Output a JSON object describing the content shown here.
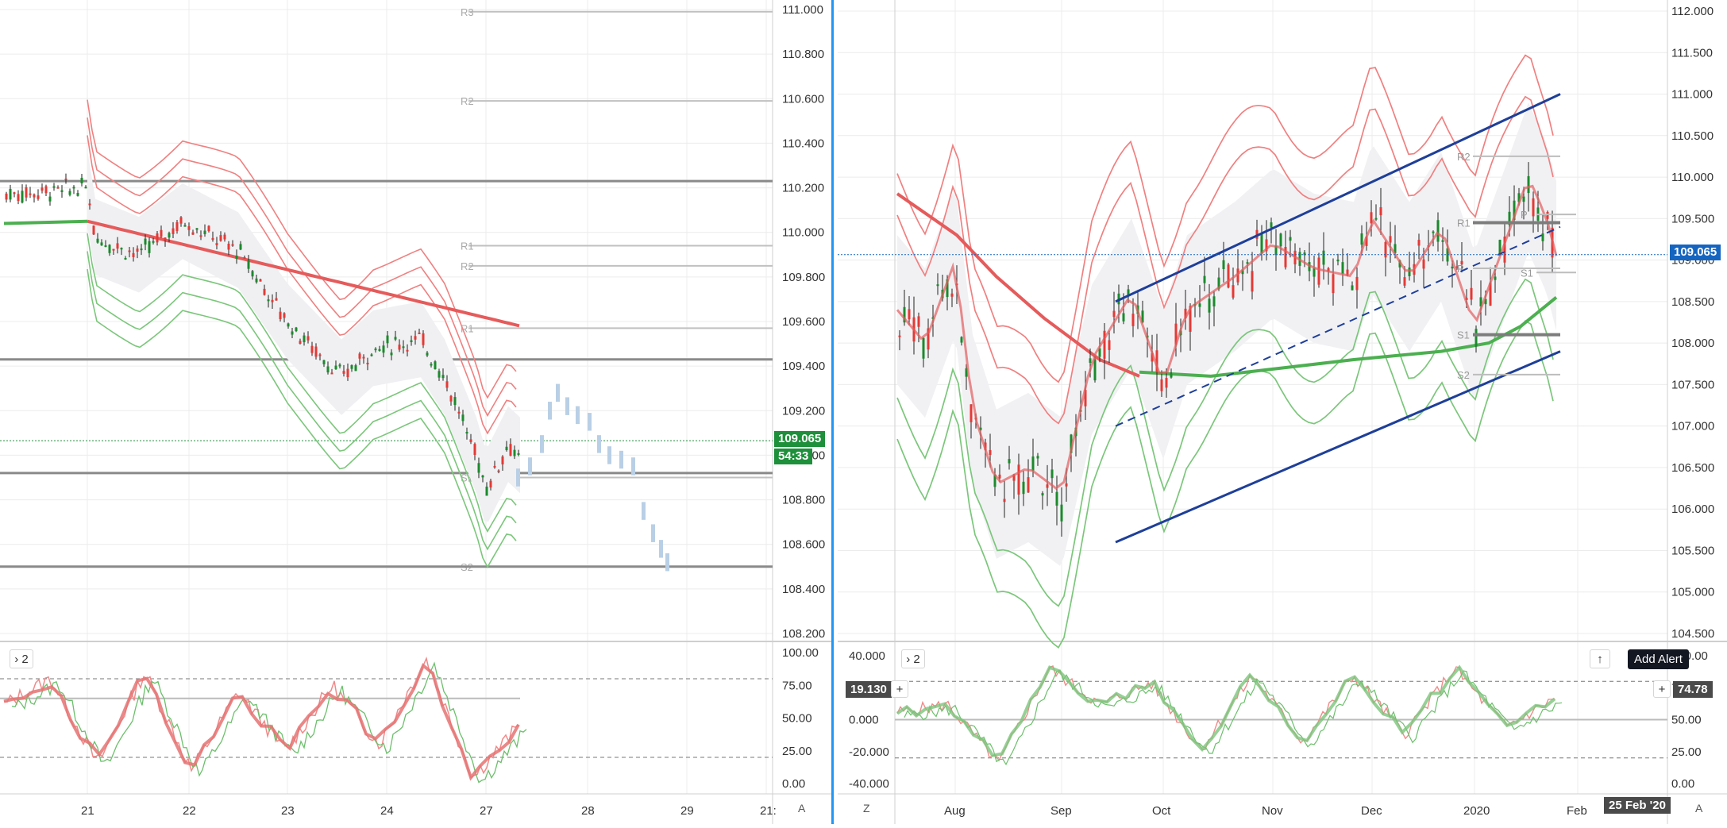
{
  "left": {
    "price_axis": [
      "111.000",
      "110.800",
      "110.600",
      "110.400",
      "110.200",
      "110.000",
      "109.800",
      "109.600",
      "109.400",
      "109.200",
      "109.000",
      "108.800",
      "108.600",
      "108.400",
      "108.200"
    ],
    "time_axis": [
      "21",
      "22",
      "23",
      "24",
      "27",
      "28",
      "29",
      "21:"
    ],
    "pivot_labels": [
      "R3",
      "R2",
      "R1",
      "R2",
      "R1",
      "S1",
      "S2"
    ],
    "last_price": "109.065",
    "countdown": "54:33",
    "indicator_toggle": "2",
    "osc_axis": [
      "100.00",
      "75.00",
      "50.00",
      "25.00",
      "0.00"
    ],
    "corner_label": "A"
  },
  "right": {
    "price_axis": [
      "112.000",
      "111.500",
      "111.000",
      "110.500",
      "110.000",
      "109.500",
      "109.000",
      "108.500",
      "108.000",
      "107.500",
      "107.000",
      "106.500",
      "106.000",
      "105.500",
      "105.000",
      "104.500"
    ],
    "time_axis": [
      "Aug",
      "Sep",
      "Oct",
      "Nov",
      "Dec",
      "2020",
      "Feb"
    ],
    "pivot_labels": [
      "R2",
      "R1",
      "P",
      "S1",
      "S2",
      "P",
      "S1"
    ],
    "last_price": "109.065",
    "indicator_toggle": "2",
    "osc_left_axis": [
      "40.000",
      "20.000",
      "0.000",
      "-20.000",
      "-40.000"
    ],
    "osc_right_axis": [
      "100.00",
      "75.00",
      "50.00",
      "25.00",
      "0.00"
    ],
    "osc_left_value": "19.130",
    "osc_right_value": "74.78",
    "add_alert": "Add Alert",
    "date_tag": "25 Feb '20",
    "corner_left": "Z",
    "corner_right": "A"
  },
  "colors": {
    "accent": "#2196f3",
    "bear": "#e53935",
    "bull": "#1b8a2c",
    "channel": "#1e3f99",
    "price_tag": "#1e8f3a"
  },
  "chart_data": [
    {
      "type": "line",
      "title": "",
      "x": [
        "21",
        "22",
        "23",
        "24",
        "27",
        "28",
        "29"
      ],
      "ylim": [
        108.2,
        111.0
      ],
      "grid": true,
      "series": [
        {
          "values": [
            110.17,
            110.05,
            109.9,
            109.3,
            108.95,
            null,
            null
          ]
        },
        {
          "values": [
            null,
            null,
            null,
            null,
            108.95,
            109.25,
            108.55
          ]
        }
      ],
      "horizontal_levels": [
        110.23,
        109.43,
        108.92,
        108.5
      ],
      "last": 109.065
    },
    {
      "type": "line",
      "title": "",
      "x": [
        "Aug",
        "Sep",
        "Oct",
        "Nov",
        "Dec",
        "2020",
        "Feb"
      ],
      "ylim": [
        104.5,
        112.0
      ],
      "grid": true,
      "series": [
        {
          "values": [
            108.5,
            106.2,
            108.0,
            108.9,
            109.1,
            108.5,
            109.1
          ]
        }
      ],
      "channel": {
        "upper": [
          108.5,
          111.0
        ],
        "mid": [
          107.0,
          109.4
        ],
        "lower": [
          105.6,
          107.9
        ]
      },
      "last": 109.065
    },
    {
      "type": "line",
      "title": "",
      "ylim": [
        0,
        100
      ],
      "levels": [
        80,
        20
      ],
      "series": [
        {
          "values": [
            60,
            80,
            15,
            85,
            10,
            70,
            25,
            75,
            30,
            95,
            5,
            45
          ]
        }
      ]
    },
    {
      "type": "line",
      "title": "",
      "ylim": [
        -40,
        40
      ],
      "levels": [
        80,
        20
      ],
      "series": [
        {
          "values": [
            5,
            10,
            -30,
            35,
            10,
            25,
            -20,
            30,
            -15,
            30,
            -10,
            35,
            -5,
            15
          ]
        }
      ]
    }
  ]
}
